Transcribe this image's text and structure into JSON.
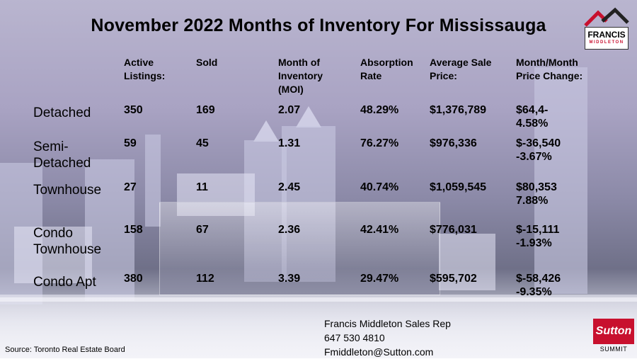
{
  "title": "November 2022 Months of Inventory For Mississauga",
  "headers": {
    "active": [
      "Active",
      "Listings:"
    ],
    "sold": [
      "Sold"
    ],
    "moi": [
      "Month of",
      "Inventory",
      "(MOI)"
    ],
    "absorption": [
      "Absorption",
      "Rate"
    ],
    "avg_price": [
      "Average Sale",
      "Price:"
    ],
    "change": [
      "Month/Month",
      "Price Change:"
    ]
  },
  "rows": [
    {
      "label": [
        "Detached"
      ],
      "active": "350",
      "sold": "169",
      "moi": "2.07",
      "absorption": "48.29%",
      "avg_price": "$1,376,789",
      "change": [
        "$64,4-",
        "4.58%"
      ]
    },
    {
      "label": [
        "Semi-",
        "Detached"
      ],
      "active": "59",
      "sold": "45",
      "moi": "1.31",
      "absorption": "76.27%",
      "avg_price": "$976,336",
      "change": [
        "$-36,540",
        "-3.67%"
      ]
    },
    {
      "label": [
        "Townhouse"
      ],
      "active": "27",
      "sold": "11",
      "moi": "2.45",
      "absorption": "40.74%",
      "avg_price": "$1,059,545",
      "change": [
        "$80,353",
        "7.88%"
      ]
    },
    {
      "label": [
        "Condo",
        "Townhouse"
      ],
      "active": "158",
      "sold": "67",
      "moi": "2.36",
      "absorption": "42.41%",
      "avg_price": "$776,031",
      "change": [
        "$-15,111",
        "-1.93%"
      ]
    },
    {
      "label": [
        "Condo Apt"
      ],
      "active": "380",
      "sold": "112",
      "moi": "3.39",
      "absorption": "29.47%",
      "avg_price": "$595,702",
      "change": [
        "$-58,426",
        "-9.35%"
      ]
    }
  ],
  "source": "Source: Toronto Real Estate Board",
  "contact": {
    "name": "Francis Middleton Sales Rep",
    "phone": "647 530 4810",
    "email": "Fmiddleton@Sutton.com"
  },
  "logo": {
    "name": "FRANCIS",
    "sub": "MIDDLETON",
    "brand_color": "#c8102e"
  },
  "sutton": {
    "name": "Sutton",
    "sub": "SUMMIT"
  }
}
